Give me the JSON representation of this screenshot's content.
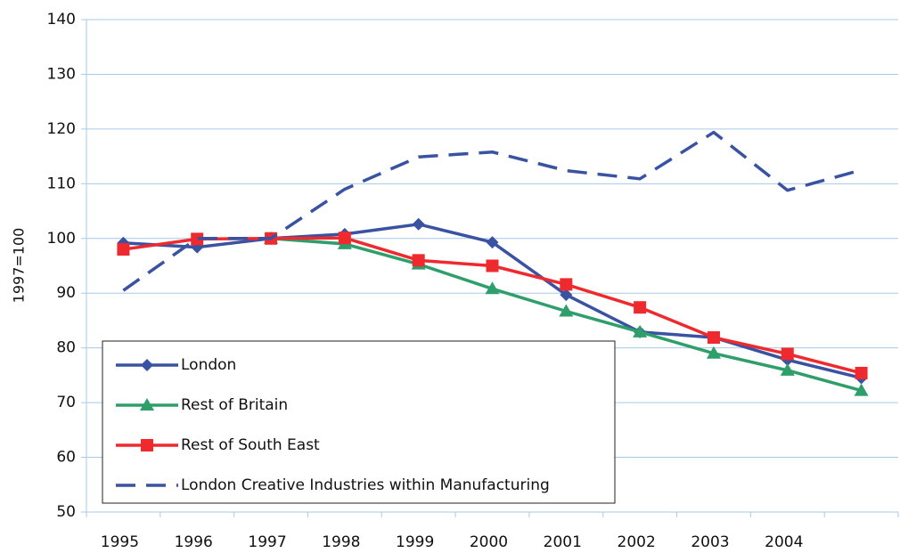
{
  "chart_data": {
    "type": "line",
    "y_label": "1997=100",
    "categories": [
      "1995",
      "1996",
      "1997",
      "1998",
      "1999",
      "2000",
      "2001",
      "2002",
      "2003",
      "2004",
      null
    ],
    "series": [
      {
        "name": "London",
        "color": "#3a52a2",
        "marker": "diamond",
        "dashed": false,
        "values": [
          99.2,
          98.4,
          100,
          100.8,
          102.6,
          99.3,
          89.7,
          82.9,
          81.9,
          77.8,
          74.5
        ]
      },
      {
        "name": "Rest of Britain",
        "color": "#2e9e6b",
        "marker": "triangle",
        "dashed": false,
        "values": [
          null,
          null,
          100,
          99,
          95.3,
          90.8,
          86.7,
          82.9,
          79,
          75.9,
          72.2
        ]
      },
      {
        "name": "Rest of South East",
        "color": "#ee2a2e",
        "marker": "square",
        "dashed": false,
        "values": [
          98,
          99.9,
          100,
          100.1,
          96,
          95,
          91.6,
          87.4,
          81.9,
          78.9,
          75.4
        ]
      },
      {
        "name": "London Creative Industries within Manufacturing",
        "color": "#3a52a2",
        "marker": "none",
        "dashed": true,
        "values": [
          90.5,
          100,
          100,
          109,
          114.9,
          115.8,
          112.4,
          110.9,
          119.4,
          108.8,
          112.5
        ]
      }
    ],
    "ylim": [
      50,
      140
    ],
    "yticks": [
      50,
      60,
      70,
      80,
      90,
      100,
      110,
      120,
      130,
      140
    ],
    "grid": true
  }
}
